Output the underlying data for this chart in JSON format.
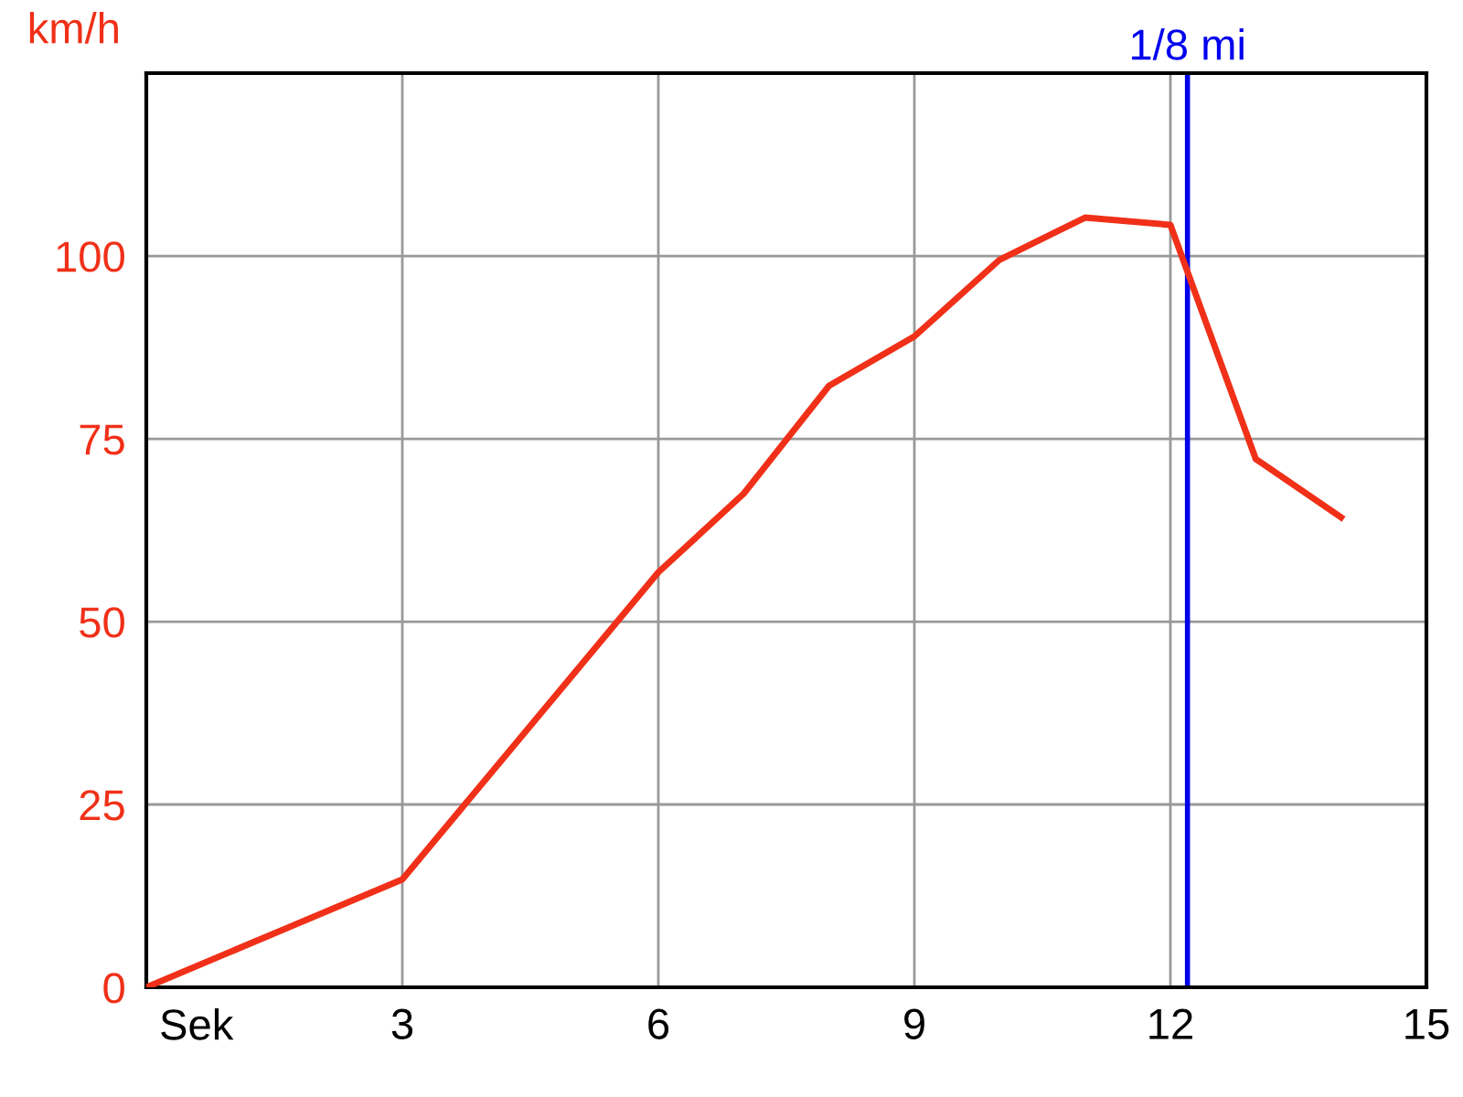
{
  "chart_data": {
    "type": "line",
    "xlabel": "Sek",
    "ylabel": "km/h",
    "x": [
      0,
      3,
      6,
      7,
      8,
      9,
      10,
      11,
      12,
      13,
      14
    ],
    "series": [
      {
        "color": "#f03018",
        "values": [
          0,
          14.75,
          56.75,
          67.5,
          82.25,
          89,
          99.5,
          105.25,
          104.25,
          72.25,
          64.25
        ]
      }
    ],
    "xlim": [
      0,
      15
    ],
    "xticks": [
      3,
      6,
      9,
      12,
      15
    ],
    "ylim": [
      0,
      125
    ],
    "yticks": [
      0,
      25,
      50,
      75,
      100
    ],
    "grid": true,
    "marker": "none",
    "line_style": "solid",
    "ref_lines": [
      {
        "axis": "x",
        "value": 12.2,
        "label": "1/8 mi",
        "color": "#0000ee"
      }
    ]
  }
}
